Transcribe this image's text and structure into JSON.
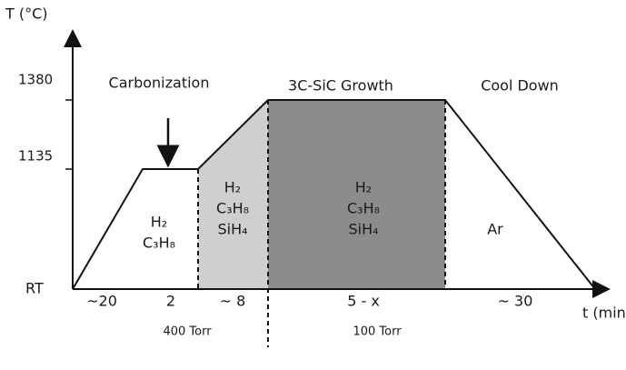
{
  "axes": {
    "y_label": "T (°C)",
    "x_label": "t (min)",
    "y_ticks": [
      "1380",
      "1135",
      "RT"
    ]
  },
  "phases": [
    "Carbonization",
    "3C-SiC Growth",
    "Cool Down"
  ],
  "regions": [
    {
      "gases": [
        "H₂",
        "C₃H₈"
      ]
    },
    {
      "gases": [
        "H₂",
        "C₃H₈",
        "SiH₄"
      ]
    },
    {
      "gases": [
        "H₂",
        "C₃H₈",
        "SiH₄"
      ]
    },
    {
      "gases": [
        "Ar"
      ]
    }
  ],
  "durations": [
    "~20",
    "2",
    "~ 8",
    "5 - x",
    "~ 30"
  ],
  "pressures": [
    "400 Torr",
    "100 Torr"
  ]
}
